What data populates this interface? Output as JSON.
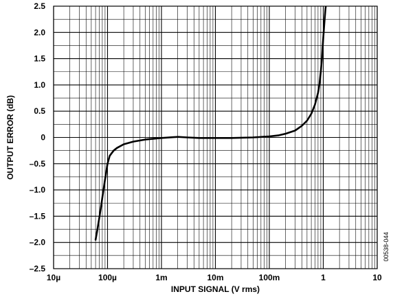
{
  "chart_data": {
    "type": "line",
    "x_scale": "log",
    "xlabel": "INPUT SIGNAL (V rms)",
    "ylabel": "OUTPUT ERROR (dB)",
    "xlim": [
      1e-05,
      10
    ],
    "ylim": [
      -2.5,
      2.5
    ],
    "grid": true,
    "x_ticks": [
      {
        "value": 1e-05,
        "label": "10µ"
      },
      {
        "value": 0.0001,
        "label": "100µ"
      },
      {
        "value": 0.001,
        "label": "1m"
      },
      {
        "value": 0.01,
        "label": "10m"
      },
      {
        "value": 0.1,
        "label": "100m"
      },
      {
        "value": 1,
        "label": "1"
      },
      {
        "value": 10,
        "label": "10"
      }
    ],
    "y_ticks": [
      {
        "value": 2.5,
        "label": "2.5"
      },
      {
        "value": 2.0,
        "label": "2.0"
      },
      {
        "value": 1.5,
        "label": "1.5"
      },
      {
        "value": 1.0,
        "label": "1.0"
      },
      {
        "value": 0.5,
        "label": "0.5"
      },
      {
        "value": 0,
        "label": "0"
      },
      {
        "value": -0.5,
        "label": "–0.5"
      },
      {
        "value": -1.0,
        "label": "–1.0"
      },
      {
        "value": -1.5,
        "label": "–1.5"
      },
      {
        "value": -2.0,
        "label": "–2.0"
      },
      {
        "value": -2.5,
        "label": "–2.5"
      }
    ],
    "series": [
      {
        "color": "#000000",
        "x": [
          6e-05,
          6.5e-05,
          7e-05,
          7.5e-05,
          8e-05,
          9e-05,
          0.0001,
          0.00011,
          0.00013,
          0.00015,
          0.0002,
          0.0003,
          0.0005,
          0.001,
          0.002,
          0.003,
          0.005,
          0.01,
          0.02,
          0.05,
          0.1,
          0.15,
          0.2,
          0.3,
          0.4,
          0.5,
          0.6,
          0.7,
          0.8,
          0.85,
          0.9,
          0.95,
          1.0,
          1.05,
          1.1,
          1.13
        ],
        "y": [
          -1.95,
          -1.75,
          -1.55,
          -1.35,
          -1.15,
          -0.8,
          -0.5,
          -0.35,
          -0.25,
          -0.2,
          -0.13,
          -0.08,
          -0.04,
          -0.01,
          0.01,
          0.0,
          -0.01,
          -0.01,
          -0.01,
          0.0,
          0.02,
          0.04,
          0.07,
          0.13,
          0.22,
          0.32,
          0.45,
          0.62,
          0.85,
          1.02,
          1.25,
          1.55,
          1.9,
          2.2,
          2.45,
          2.55
        ]
      }
    ]
  },
  "figure_id": "00538-044"
}
